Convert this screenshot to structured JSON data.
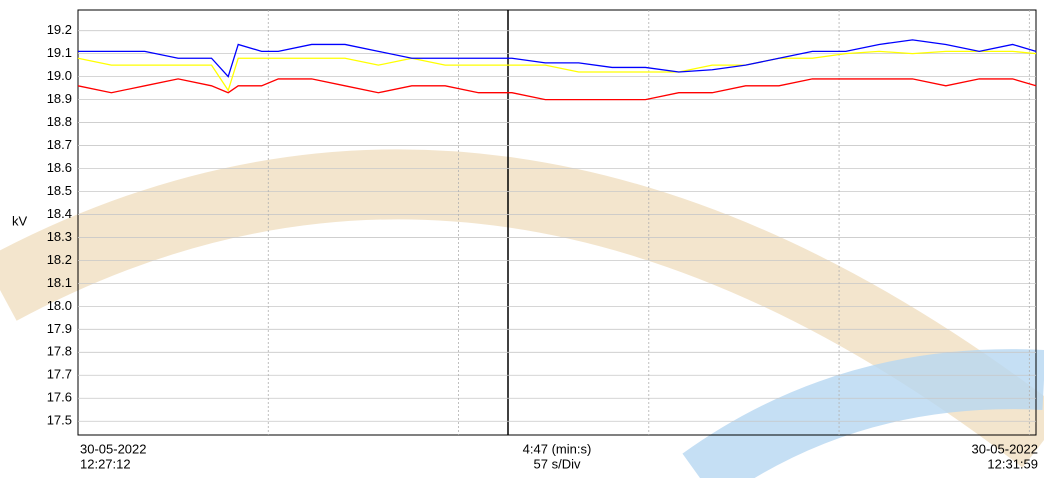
{
  "chart_data": {
    "type": "line",
    "ylabel": "kV",
    "start_date": "30-05-2022",
    "start_time": "12:27:12",
    "span": "4:47 (min:s)",
    "division": "57 s/Div",
    "end_date": "30-05-2022",
    "end_time": "12:31:59",
    "x": [
      0,
      10,
      20,
      30,
      40,
      45,
      48,
      55,
      60,
      70,
      80,
      90,
      100,
      110,
      120,
      130,
      140,
      150,
      160,
      170,
      180,
      190,
      200,
      210,
      220,
      230,
      240,
      250,
      260,
      270,
      280,
      287
    ],
    "xlim": [
      0,
      287
    ],
    "xgrid": [
      57,
      114,
      171,
      228,
      285
    ],
    "ylim": [
      17.44,
      19.29
    ],
    "yticks": [
      19.2,
      19.1,
      {
        "value": 19,
        "label": "19.0"
      },
      18.9,
      18.8,
      18.7,
      18.6,
      18.5,
      18.4,
      18.3,
      18.2,
      18.1,
      {
        "value": 18,
        "label": "18.0"
      },
      17.9,
      17.8,
      17.7,
      17.6,
      17.5
    ],
    "grid": true,
    "series": [
      {
        "color": "#ffff00",
        "values": [
          19.08,
          19.05,
          19.05,
          19.05,
          19.05,
          18.94,
          19.08,
          19.08,
          19.08,
          19.08,
          19.08,
          19.05,
          19.08,
          19.05,
          19.05,
          19.05,
          19.05,
          19.02,
          19.02,
          19.02,
          19.02,
          19.05,
          19.05,
          19.08,
          19.08,
          19.1,
          19.11,
          19.1,
          19.11,
          19.11,
          19.11,
          19.1
        ]
      },
      {
        "color": "#ff0000",
        "values": [
          18.96,
          18.93,
          18.96,
          18.99,
          18.96,
          18.93,
          18.96,
          18.96,
          18.99,
          18.99,
          18.96,
          18.93,
          18.96,
          18.96,
          18.93,
          18.93,
          18.9,
          18.9,
          18.9,
          18.9,
          18.93,
          18.93,
          18.96,
          18.96,
          18.99,
          18.99,
          18.99,
          18.99,
          18.96,
          18.99,
          18.99,
          18.96
        ]
      },
      {
        "color": "#0000ff",
        "values": [
          19.11,
          19.11,
          19.11,
          19.08,
          19.08,
          19.0,
          19.14,
          19.11,
          19.11,
          19.14,
          19.14,
          19.11,
          19.08,
          19.08,
          19.08,
          19.08,
          19.06,
          19.06,
          19.04,
          19.04,
          19.02,
          19.03,
          19.05,
          19.08,
          19.11,
          19.11,
          19.14,
          19.16,
          19.14,
          19.11,
          19.14,
          19.11
        ]
      }
    ]
  }
}
